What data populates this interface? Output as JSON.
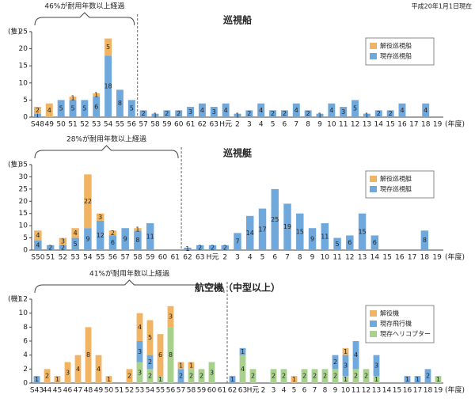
{
  "note": "平成20年1月1日現在",
  "chart_data": [
    {
      "type": "bar",
      "stacked": true,
      "title": "巡視船",
      "unit": "(隻)",
      "x_unit": "(年度)",
      "annotation": "46%が耐用年数以上経過",
      "categories": [
        "S48",
        "49",
        "50",
        "51",
        "52",
        "53",
        "54",
        "55",
        "56",
        "57",
        "58",
        "59",
        "60",
        "61",
        "62",
        "63",
        "H元",
        "2",
        "3",
        "4",
        "5",
        "6",
        "7",
        "8",
        "9",
        "10",
        "11",
        "12",
        "13",
        "14",
        "15",
        "16",
        "17",
        "18",
        "19"
      ],
      "series": [
        {
          "name": "現存巡視船",
          "color": "#6fa8dc",
          "values": [
            1,
            0,
            5,
            5,
            5,
            6,
            18,
            8,
            5,
            2,
            1,
            2,
            2,
            3,
            4,
            3,
            4,
            1,
            2,
            4,
            2,
            2,
            4,
            2,
            1,
            4,
            3,
            5,
            1,
            2,
            2,
            4,
            0,
            4,
            0
          ]
        },
        {
          "name": "解役巡視船",
          "color": "#f0b462",
          "values": [
            2,
            4,
            0,
            1,
            0,
            1,
            5,
            0,
            0,
            0,
            0,
            0,
            0,
            0,
            0,
            0,
            0,
            0,
            0,
            0,
            0,
            0,
            0,
            0,
            0,
            0,
            0,
            0,
            0,
            0,
            0,
            0,
            0,
            0,
            0
          ]
        }
      ],
      "ylim": [
        0,
        25
      ],
      "yticks": [
        0,
        5,
        10,
        15,
        20,
        25
      ]
    },
    {
      "type": "bar",
      "stacked": true,
      "title": "巡視艇",
      "unit": "(隻)",
      "x_unit": "(年度)",
      "annotation": "28%が耐用年数以上経過",
      "categories": [
        "S50",
        "51",
        "52",
        "53",
        "54",
        "55",
        "56",
        "57",
        "58",
        "59",
        "60",
        "61",
        "62",
        "63",
        "H元",
        "2",
        "3",
        "4",
        "5",
        "6",
        "7",
        "8",
        "9",
        "10",
        "11",
        "12",
        "13",
        "14",
        "15",
        "16",
        "17",
        "18",
        "19"
      ],
      "series": [
        {
          "name": "現存巡視艇",
          "color": "#6fa8dc",
          "values": [
            4,
            2,
            2,
            5,
            9,
            12,
            6,
            9,
            8,
            11,
            0,
            0,
            1,
            2,
            2,
            2,
            7,
            14,
            17,
            25,
            19,
            15,
            9,
            11,
            5,
            6,
            15,
            6,
            0,
            0,
            0,
            8,
            0
          ]
        },
        {
          "name": "解役巡視艇",
          "color": "#f0b462",
          "values": [
            4,
            0,
            3,
            4,
            22,
            3,
            2,
            0,
            1,
            0,
            0,
            0,
            0,
            0,
            0,
            0,
            0,
            0,
            0,
            0,
            0,
            0,
            0,
            0,
            0,
            0,
            0,
            0,
            0,
            0,
            0,
            0,
            0
          ]
        }
      ],
      "ylim": [
        0,
        35
      ],
      "yticks": [
        0,
        5,
        10,
        15,
        20,
        25,
        30,
        35
      ]
    },
    {
      "type": "bar",
      "stacked": true,
      "title": "航空機（中型以上）",
      "unit": "(機)",
      "x_unit": "(年度)",
      "annotation": "41%が耐用年数以上経過",
      "categories": [
        "S43",
        "44",
        "45",
        "46",
        "47",
        "48",
        "49",
        "50",
        "51",
        "52",
        "53",
        "54",
        "55",
        "56",
        "57",
        "58",
        "59",
        "60",
        "61",
        "62",
        "63",
        "H元",
        "2",
        "3",
        "4",
        "5",
        "6",
        "7",
        "8",
        "9",
        "10",
        "11",
        "12",
        "13",
        "14",
        "15",
        "16",
        "17",
        "18",
        "19"
      ],
      "series": [
        {
          "name": "現存ヘリコプター",
          "color": "#a9d18e",
          "values": [
            0,
            0,
            0,
            0,
            0,
            0,
            0,
            0,
            0,
            0,
            3,
            2,
            1,
            8,
            0,
            2,
            2,
            3,
            0,
            0,
            4,
            2,
            0,
            2,
            2,
            0,
            2,
            2,
            2,
            2,
            1,
            2,
            2,
            1,
            0,
            0,
            0,
            0,
            0,
            1
          ]
        },
        {
          "name": "現存飛行機",
          "color": "#6fa8dc",
          "values": [
            1,
            0,
            0,
            0,
            0,
            0,
            0,
            0,
            0,
            0,
            3,
            2,
            0,
            0,
            2,
            0,
            0,
            0,
            0,
            1,
            1,
            0,
            0,
            0,
            0,
            0,
            0,
            0,
            0,
            2,
            3,
            4,
            0,
            3,
            0,
            0,
            1,
            1,
            2,
            0
          ]
        },
        {
          "name": "解役機",
          "color": "#f0b462",
          "values": [
            0,
            2,
            1,
            3,
            4,
            8,
            4,
            1,
            0,
            2,
            4,
            5,
            6,
            3,
            1,
            1,
            0,
            0,
            0,
            0,
            0,
            0,
            0,
            0,
            0,
            1,
            0,
            0,
            0,
            0,
            1,
            0,
            0,
            0,
            0,
            0,
            0,
            0,
            0,
            0
          ]
        }
      ],
      "ylim": [
        0,
        12
      ],
      "yticks": [
        0,
        2,
        4,
        6,
        8,
        10,
        12
      ]
    }
  ]
}
